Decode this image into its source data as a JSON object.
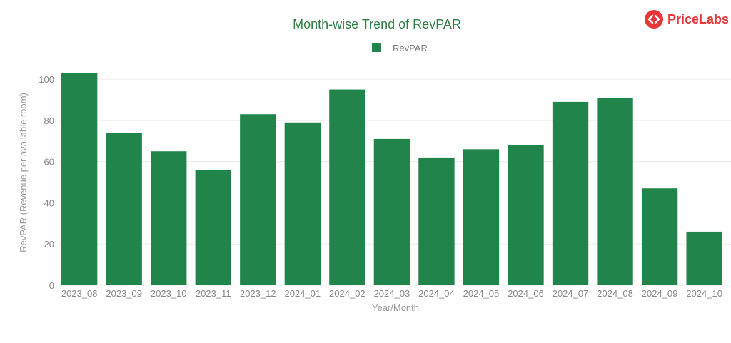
{
  "brand": {
    "name": "PriceLabs",
    "color": "#e8363b"
  },
  "chart_data": {
    "type": "bar",
    "title": "Month-wise Trend of RevPAR",
    "xlabel": "Year/Month",
    "ylabel": "RevPAR (Revenue per available room)",
    "ylim": [
      0,
      108
    ],
    "yticks": [
      0,
      20,
      40,
      60,
      80,
      100
    ],
    "grid": true,
    "legend_position": "top-center",
    "categories": [
      "2023_08",
      "2023_09",
      "2023_10",
      "2023_11",
      "2023_12",
      "2024_01",
      "2024_02",
      "2024_03",
      "2024_04",
      "2024_05",
      "2024_06",
      "2024_07",
      "2024_08",
      "2024_09",
      "2024_10"
    ],
    "series": [
      {
        "name": "RevPAR",
        "color": "#21844a",
        "values": [
          103,
          74,
          65,
          56,
          83,
          79,
          95,
          71,
          62,
          66,
          68,
          89,
          91,
          47,
          26
        ]
      }
    ]
  }
}
